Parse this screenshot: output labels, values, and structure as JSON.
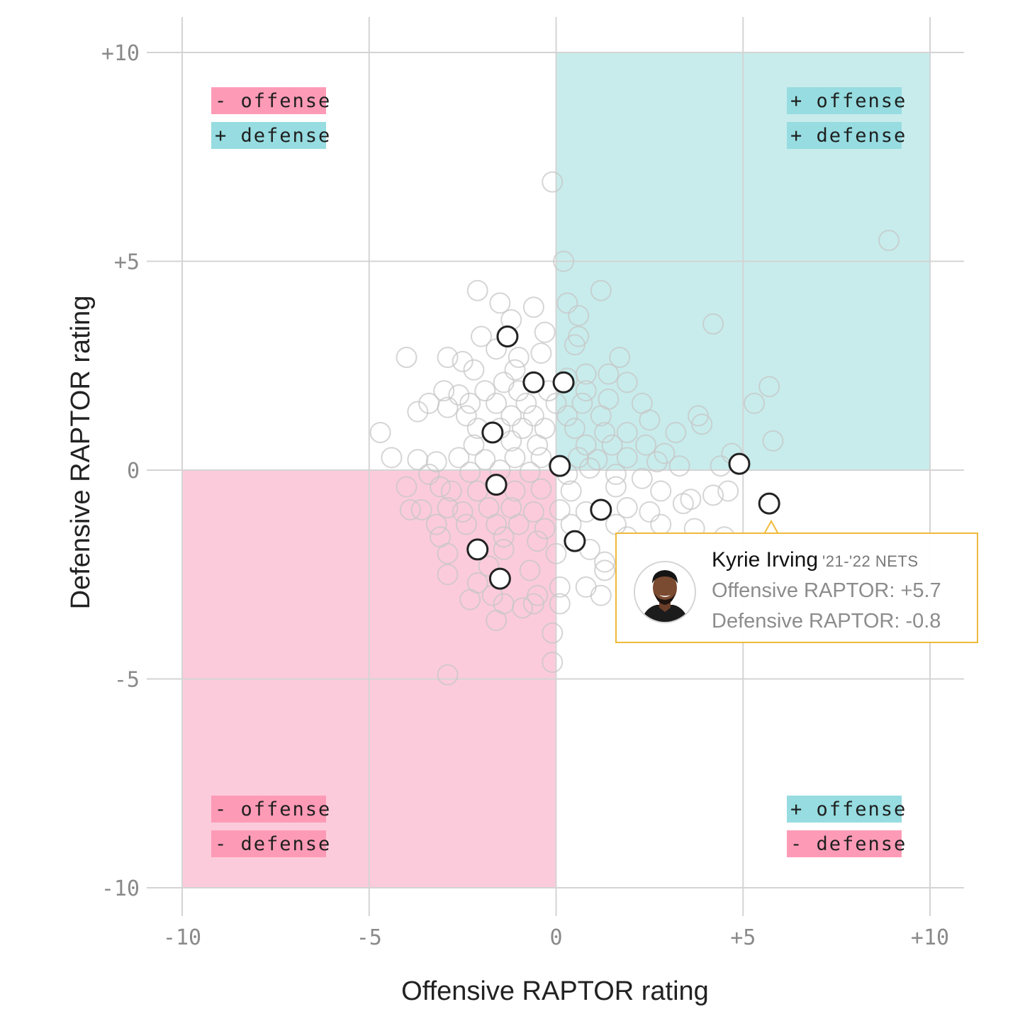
{
  "chart_data": {
    "type": "scatter",
    "xlabel": "Offensive RAPTOR rating",
    "ylabel": "Defensive RAPTOR rating",
    "xlim": [
      -11,
      11
    ],
    "ylim": [
      -11,
      11
    ],
    "grid": true,
    "x_ticks": [
      {
        "value": -10,
        "label": "-10"
      },
      {
        "value": -5,
        "label": "-5"
      },
      {
        "value": 0,
        "label": "0"
      },
      {
        "value": 5,
        "label": "+5"
      },
      {
        "value": 10,
        "label": "+10"
      }
    ],
    "y_ticks": [
      {
        "value": 10,
        "label": "+10"
      },
      {
        "value": 5,
        "label": "+5"
      },
      {
        "value": 0,
        "label": "0"
      },
      {
        "value": -5,
        "label": "-5"
      },
      {
        "value": -10,
        "label": "-10"
      }
    ],
    "quadrants": [
      {
        "name": "top-left",
        "lines": [
          {
            "text": "- offense",
            "sign": "neg"
          },
          {
            "text": "+ defense",
            "sign": "pos"
          }
        ]
      },
      {
        "name": "top-right",
        "lines": [
          {
            "text": "+ offense",
            "sign": "pos"
          },
          {
            "text": "+ defense",
            "sign": "pos"
          }
        ]
      },
      {
        "name": "bottom-left",
        "lines": [
          {
            "text": "- offense",
            "sign": "neg"
          },
          {
            "text": "- defense",
            "sign": "neg"
          }
        ]
      },
      {
        "name": "bottom-right",
        "lines": [
          {
            "text": "+ offense",
            "sign": "pos"
          },
          {
            "text": "- defense",
            "sign": "neg"
          }
        ]
      }
    ],
    "highlighted_series": {
      "points": [
        {
          "x": -1.3,
          "y": 3.2
        },
        {
          "x": -0.6,
          "y": 2.1
        },
        {
          "x": 0.2,
          "y": 2.1
        },
        {
          "x": -1.7,
          "y": 0.9
        },
        {
          "x": 0.1,
          "y": 0.1
        },
        {
          "x": -1.6,
          "y": -0.35
        },
        {
          "x": 4.9,
          "y": 0.15
        },
        {
          "x": 5.7,
          "y": -0.8
        },
        {
          "x": 1.2,
          "y": -0.95
        },
        {
          "x": 0.5,
          "y": -1.7
        },
        {
          "x": -2.1,
          "y": -1.9
        },
        {
          "x": -1.5,
          "y": -2.6
        }
      ]
    },
    "background_series": {
      "points": [
        [
          -0.1,
          6.9
        ],
        [
          8.9,
          5.5
        ],
        [
          0.2,
          5.0
        ],
        [
          -2.1,
          4.3
        ],
        [
          1.2,
          4.3
        ],
        [
          -1.5,
          4.0
        ],
        [
          -0.6,
          3.9
        ],
        [
          0.3,
          4.0
        ],
        [
          -1.2,
          3.6
        ],
        [
          0.6,
          3.7
        ],
        [
          4.2,
          3.5
        ],
        [
          -2.0,
          3.2
        ],
        [
          -0.3,
          3.3
        ],
        [
          0.6,
          3.2
        ],
        [
          -1.6,
          2.9
        ],
        [
          0.5,
          3.0
        ],
        [
          -4.0,
          2.7
        ],
        [
          -2.9,
          2.7
        ],
        [
          -2.5,
          2.6
        ],
        [
          -1.0,
          2.7
        ],
        [
          -0.4,
          2.8
        ],
        [
          1.7,
          2.7
        ],
        [
          -2.2,
          2.4
        ],
        [
          -1.1,
          2.4
        ],
        [
          0.8,
          2.3
        ],
        [
          1.4,
          2.3
        ],
        [
          -1.4,
          2.1
        ],
        [
          0.3,
          2.2
        ],
        [
          1.9,
          2.1
        ],
        [
          -3.0,
          1.9
        ],
        [
          -2.6,
          1.8
        ],
        [
          -1.9,
          1.9
        ],
        [
          -1.0,
          1.9
        ],
        [
          -0.2,
          1.9
        ],
        [
          0.8,
          1.9
        ],
        [
          -3.4,
          1.6
        ],
        [
          -2.3,
          1.6
        ],
        [
          -1.6,
          1.6
        ],
        [
          -0.8,
          1.6
        ],
        [
          0.0,
          1.6
        ],
        [
          0.7,
          1.6
        ],
        [
          1.4,
          1.7
        ],
        [
          2.3,
          1.6
        ],
        [
          5.3,
          1.6
        ],
        [
          5.7,
          2.0
        ],
        [
          -3.7,
          1.4
        ],
        [
          -2.9,
          1.5
        ],
        [
          -2.4,
          1.3
        ],
        [
          -1.2,
          1.3
        ],
        [
          -0.6,
          1.3
        ],
        [
          0.3,
          1.3
        ],
        [
          1.2,
          1.3
        ],
        [
          2.5,
          1.2
        ],
        [
          3.8,
          1.3
        ],
        [
          3.9,
          1.1
        ],
        [
          -4.7,
          0.9
        ],
        [
          -2.1,
          1.0
        ],
        [
          -1.5,
          1.0
        ],
        [
          -0.9,
          1.0
        ],
        [
          -0.3,
          1.0
        ],
        [
          0.5,
          1.0
        ],
        [
          1.3,
          0.9
        ],
        [
          1.9,
          0.9
        ],
        [
          3.2,
          0.9
        ],
        [
          5.8,
          0.7
        ],
        [
          -2.2,
          0.6
        ],
        [
          -1.2,
          0.7
        ],
        [
          -0.5,
          0.6
        ],
        [
          0.8,
          0.6
        ],
        [
          1.5,
          0.6
        ],
        [
          2.4,
          0.6
        ],
        [
          2.9,
          0.4
        ],
        [
          -4.4,
          0.3
        ],
        [
          -3.7,
          0.25
        ],
        [
          -3.2,
          0.2
        ],
        [
          -2.6,
          0.3
        ],
        [
          -1.9,
          0.25
        ],
        [
          -1.1,
          0.3
        ],
        [
          -0.4,
          0.3
        ],
        [
          0.6,
          0.3
        ],
        [
          1.1,
          0.25
        ],
        [
          1.9,
          0.3
        ],
        [
          2.7,
          0.2
        ],
        [
          3.3,
          0.1
        ],
        [
          4.4,
          0.1
        ],
        [
          4.7,
          0.4
        ],
        [
          -3.4,
          -0.1
        ],
        [
          -2.3,
          -0.05
        ],
        [
          -1.5,
          0.0
        ],
        [
          -0.7,
          -0.05
        ],
        [
          0.3,
          -0.1
        ],
        [
          0.9,
          0.05
        ],
        [
          1.6,
          -0.1
        ],
        [
          2.3,
          -0.2
        ],
        [
          -4.0,
          -0.4
        ],
        [
          -3.1,
          -0.4
        ],
        [
          -2.8,
          -0.5
        ],
        [
          -2.1,
          -0.5
        ],
        [
          -1.1,
          -0.5
        ],
        [
          -0.4,
          -0.45
        ],
        [
          0.4,
          -0.5
        ],
        [
          1.6,
          -0.4
        ],
        [
          2.8,
          -0.5
        ],
        [
          3.6,
          -0.7
        ],
        [
          4.2,
          -0.6
        ],
        [
          4.6,
          -0.5
        ],
        [
          -3.9,
          -0.95
        ],
        [
          -3.6,
          -0.95
        ],
        [
          -2.9,
          -0.9
        ],
        [
          -2.5,
          -1.0
        ],
        [
          -1.8,
          -0.9
        ],
        [
          -1.2,
          -0.9
        ],
        [
          -0.6,
          -1.0
        ],
        [
          0.1,
          -0.95
        ],
        [
          0.8,
          -1.0
        ],
        [
          1.9,
          -0.9
        ],
        [
          2.5,
          -1.0
        ],
        [
          3.4,
          -0.8
        ],
        [
          -3.2,
          -1.3
        ],
        [
          -2.4,
          -1.3
        ],
        [
          -1.6,
          -1.3
        ],
        [
          -1.0,
          -1.3
        ],
        [
          -0.3,
          -1.4
        ],
        [
          0.4,
          -1.3
        ],
        [
          1.6,
          -1.3
        ],
        [
          2.8,
          -1.3
        ],
        [
          3.7,
          -1.4
        ],
        [
          -3.1,
          -1.6
        ],
        [
          -1.4,
          -1.6
        ],
        [
          -0.5,
          -1.7
        ],
        [
          1.9,
          -1.6
        ],
        [
          4.5,
          -1.6
        ],
        [
          -2.9,
          -2.0
        ],
        [
          -1.4,
          -1.9
        ],
        [
          0.0,
          -2.0
        ],
        [
          0.9,
          -1.9
        ],
        [
          1.3,
          -2.2
        ],
        [
          -2.9,
          -2.5
        ],
        [
          -1.8,
          -2.3
        ],
        [
          -0.7,
          -2.4
        ],
        [
          1.3,
          -2.4
        ],
        [
          3.7,
          -2.5
        ],
        [
          -2.1,
          -2.7
        ],
        [
          0.1,
          -2.8
        ],
        [
          0.8,
          -2.8
        ],
        [
          -1.7,
          -3.0
        ],
        [
          -0.5,
          -3.0
        ],
        [
          -2.3,
          -3.1
        ],
        [
          1.2,
          -3.0
        ],
        [
          -1.4,
          -3.2
        ],
        [
          -0.9,
          -3.3
        ],
        [
          -0.6,
          -3.2
        ],
        [
          0.1,
          -3.2
        ],
        [
          -1.6,
          -3.6
        ],
        [
          -0.1,
          -3.9
        ],
        [
          -0.1,
          -4.6
        ],
        [
          -2.9,
          -4.9
        ]
      ]
    },
    "tooltip": {
      "name": "Kyrie Irving",
      "team": "'21-'22 NETS",
      "offense_line": "Offensive RAPTOR: +5.7",
      "defense_line": "Defensive RAPTOR: -0.8"
    },
    "colors": {
      "positive_quadrant": "#c8ecec",
      "negative_quadrant": "#fccbdb",
      "positive_label": "#96dce0",
      "negative_label": "#fd9bb7",
      "grid": "#d4d4d4",
      "background_point": "#c7c7c7",
      "highlight_point": "#222222",
      "tooltip_border": "#f0b93a"
    }
  }
}
